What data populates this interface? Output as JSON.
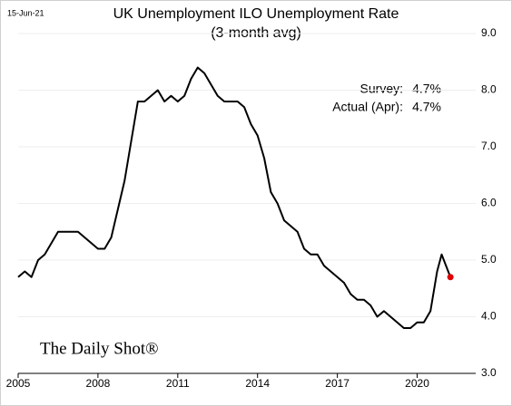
{
  "chart_data": {
    "type": "line",
    "date": "15-Jun-21",
    "title": "UK Unemployment ILO Unemployment Rate",
    "subtitle": "(3-month avg)",
    "annotations": [
      {
        "label": "Survey:",
        "value": "4.7%"
      },
      {
        "label": "Actual (Apr):",
        "value": "4.7%"
      }
    ],
    "watermark": "The Daily Shot®",
    "x": [
      2005.0,
      2005.25,
      2005.5,
      2005.75,
      2006.0,
      2006.25,
      2006.5,
      2006.75,
      2007.0,
      2007.25,
      2007.5,
      2007.75,
      2008.0,
      2008.25,
      2008.5,
      2008.75,
      2009.0,
      2009.25,
      2009.5,
      2009.75,
      2010.0,
      2010.25,
      2010.5,
      2010.75,
      2011.0,
      2011.25,
      2011.5,
      2011.75,
      2012.0,
      2012.25,
      2012.5,
      2012.75,
      2013.0,
      2013.25,
      2013.5,
      2013.75,
      2014.0,
      2014.25,
      2014.5,
      2014.75,
      2015.0,
      2015.25,
      2015.5,
      2015.75,
      2016.0,
      2016.25,
      2016.5,
      2016.75,
      2017.0,
      2017.25,
      2017.5,
      2017.75,
      2018.0,
      2018.25,
      2018.5,
      2018.75,
      2019.0,
      2019.25,
      2019.5,
      2019.75,
      2020.0,
      2020.25,
      2020.5,
      2020.75,
      2020.92,
      2021.25
    ],
    "series": [
      {
        "name": "Unemployment rate",
        "color": "#000000",
        "values": [
          4.7,
          4.8,
          4.7,
          5.0,
          5.1,
          5.3,
          5.5,
          5.5,
          5.5,
          5.5,
          5.4,
          5.3,
          5.2,
          5.2,
          5.4,
          5.9,
          6.4,
          7.1,
          7.8,
          7.8,
          7.9,
          8.0,
          7.8,
          7.9,
          7.8,
          7.9,
          8.2,
          8.4,
          8.3,
          8.1,
          7.9,
          7.8,
          7.8,
          7.8,
          7.7,
          7.4,
          7.2,
          6.8,
          6.2,
          6.0,
          5.7,
          5.6,
          5.5,
          5.2,
          5.1,
          5.1,
          4.9,
          4.8,
          4.7,
          4.6,
          4.4,
          4.3,
          4.3,
          4.2,
          4.0,
          4.1,
          4.0,
          3.9,
          3.8,
          3.8,
          3.9,
          3.9,
          4.1,
          4.8,
          5.1,
          4.7
        ]
      }
    ],
    "highlight_color": "#e00000",
    "xlim": [
      2005,
      2022.2
    ],
    "xticks": [
      2005,
      2008,
      2011,
      2014,
      2017,
      2020
    ],
    "ylim": [
      3,
      9
    ],
    "yticks": [
      {
        "value": 3,
        "label": "3.0"
      },
      {
        "value": 4,
        "label": "4.0"
      },
      {
        "value": 5,
        "label": "5.0"
      },
      {
        "value": 6,
        "label": "6.0"
      },
      {
        "value": 7,
        "label": "7.0"
      },
      {
        "value": 8,
        "label": "8.0"
      },
      {
        "value": 9,
        "label": "9.0"
      }
    ],
    "grid": true
  }
}
